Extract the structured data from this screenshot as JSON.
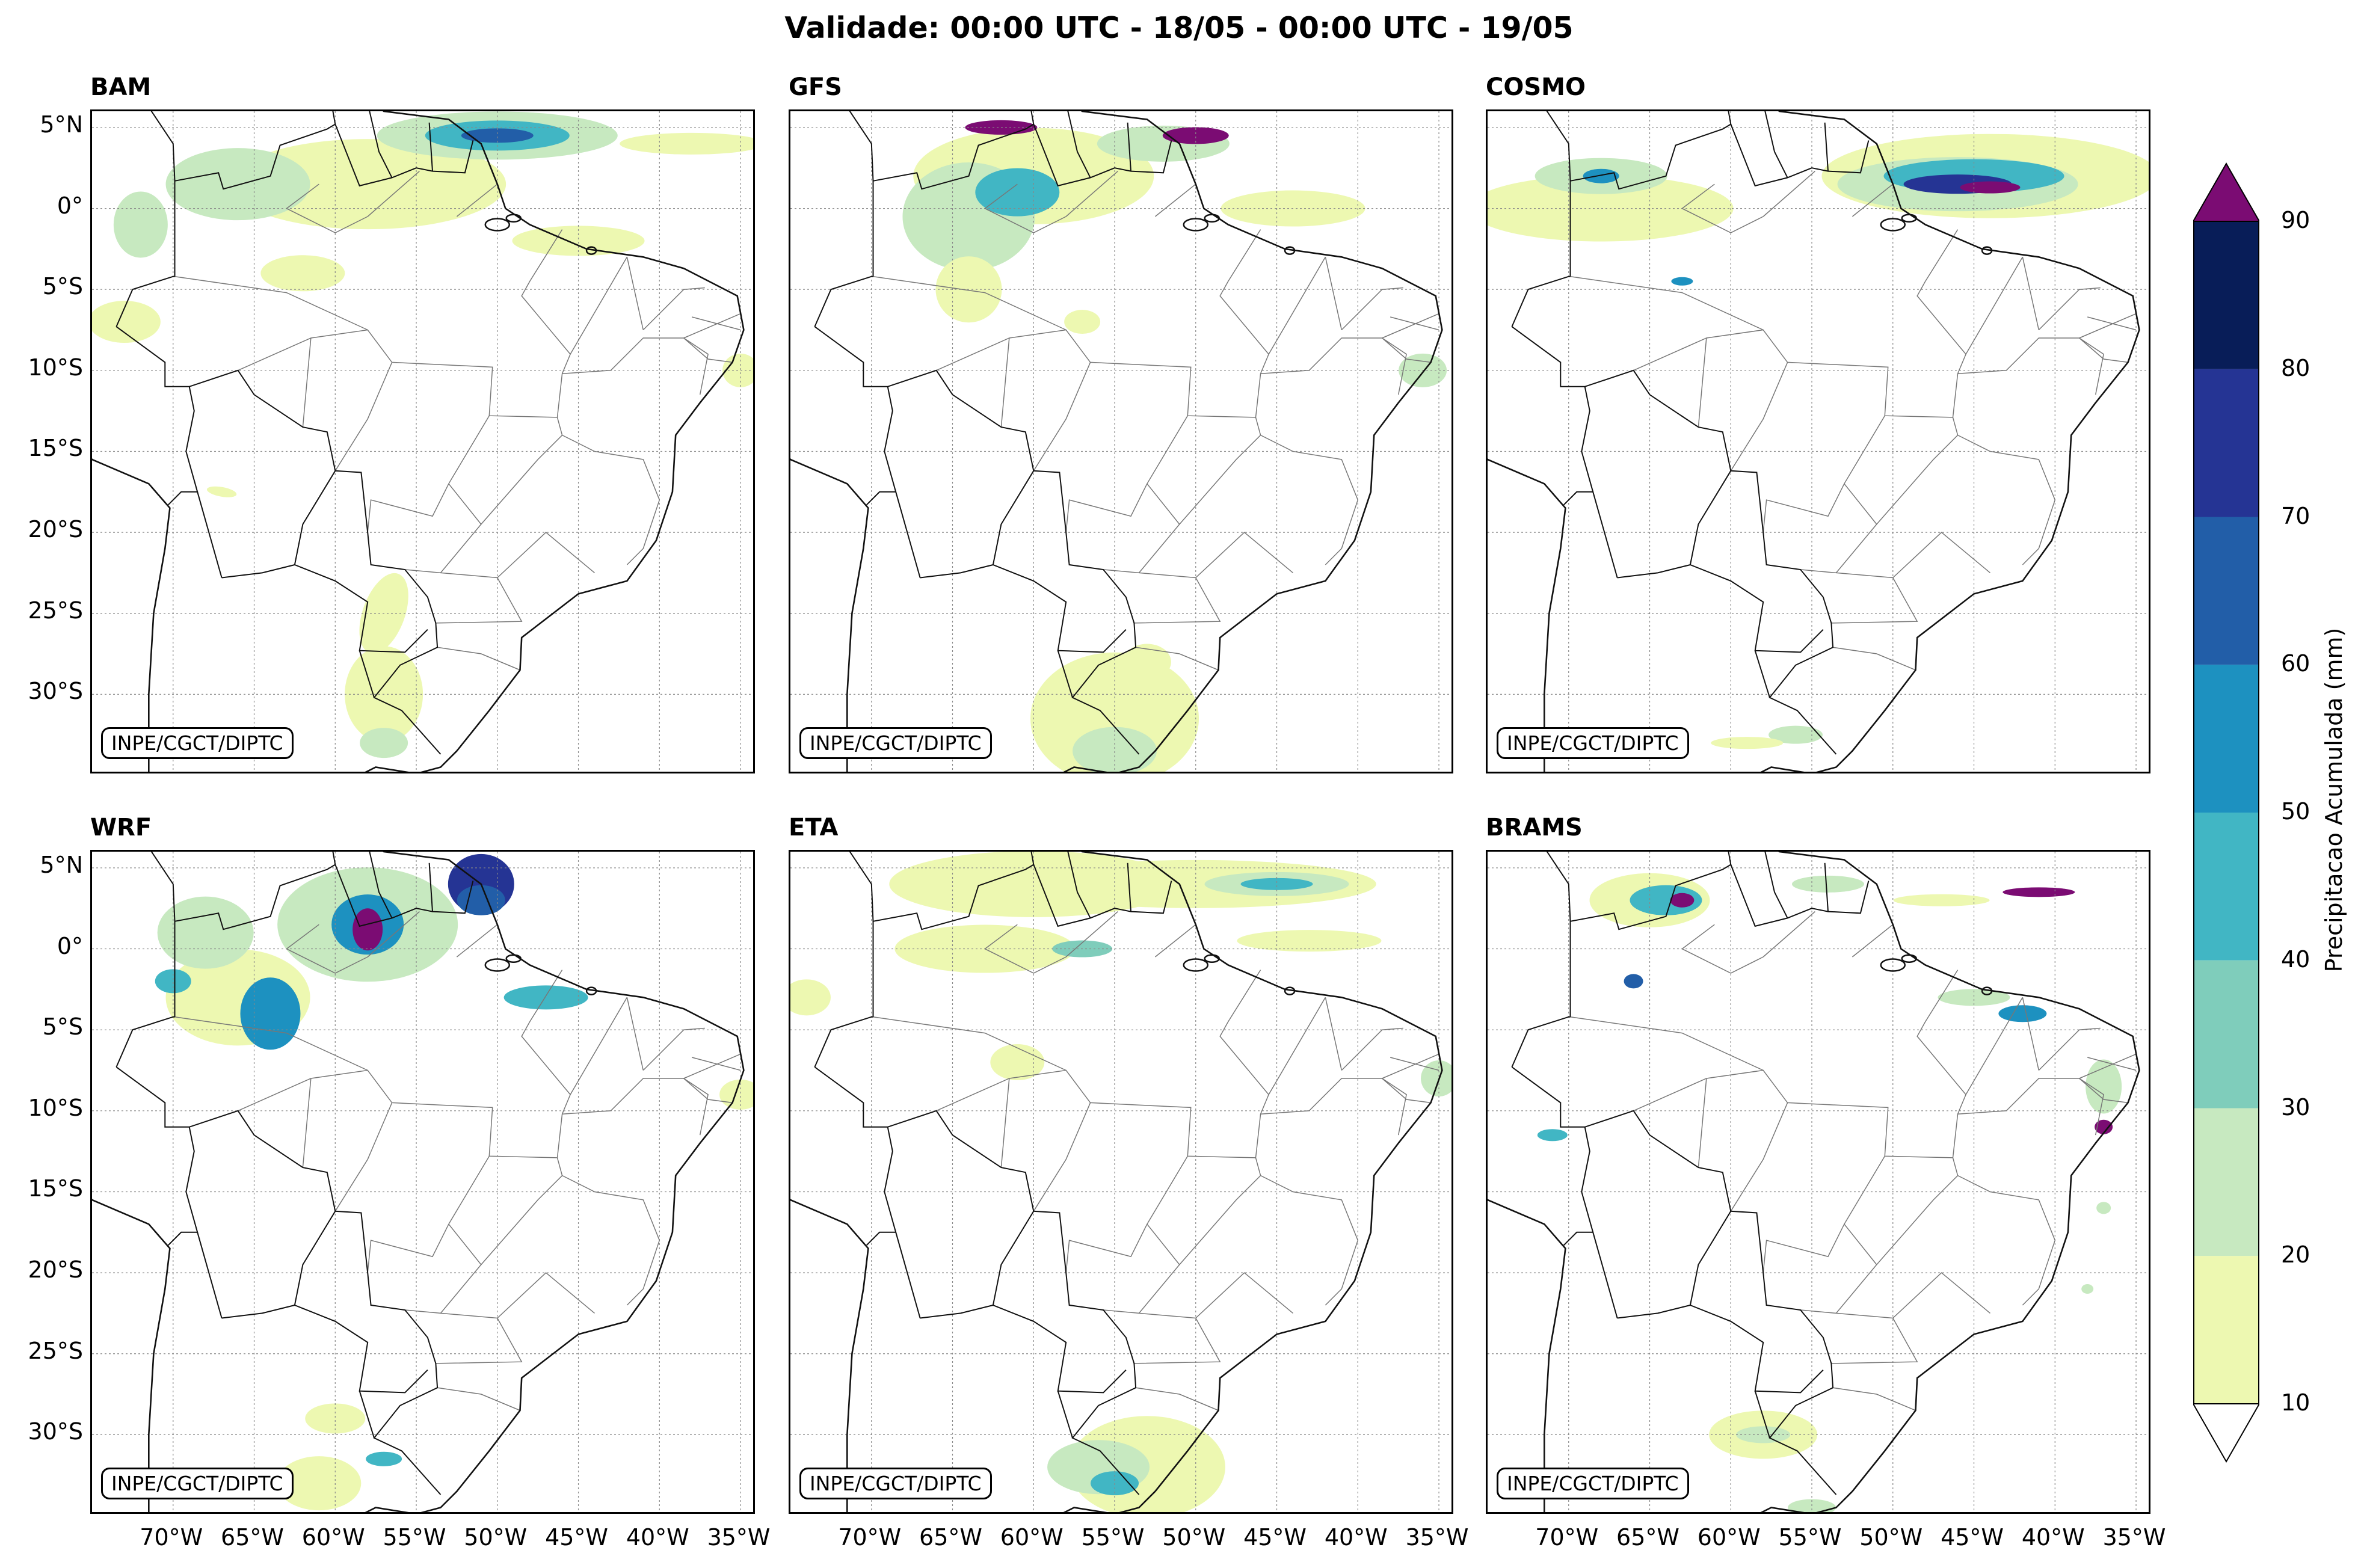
{
  "title": "Validade: 00:00 UTC - 18/05 - 00:00 UTC - 19/05",
  "credit": "INPE/CGCT/DIPTC",
  "panels": [
    {
      "name": "BAM"
    },
    {
      "name": "GFS"
    },
    {
      "name": "COSMO"
    },
    {
      "name": "WRF"
    },
    {
      "name": "ETA"
    },
    {
      "name": "BRAMS"
    }
  ],
  "lat_ticks": [
    "5°N",
    "0°",
    "5°S",
    "10°S",
    "15°S",
    "20°S",
    "25°S",
    "30°S"
  ],
  "lon_ticks": [
    "70°W",
    "65°W",
    "60°W",
    "55°W",
    "50°W",
    "45°W",
    "40°W",
    "35°W"
  ],
  "colorbar": {
    "label": "Precipitacao Acumulada (mm)",
    "ticks": [
      "10",
      "20",
      "30",
      "40",
      "50",
      "60",
      "70",
      "80",
      "90"
    ],
    "colors": [
      "#edf8b1",
      "#c7e9c0",
      "#7fcdbb",
      "#41b6c4",
      "#1d91c0",
      "#225ea8",
      "#253494",
      "#081d58"
    ],
    "over_color": "#7b0c73",
    "under_color": "#ffffff"
  }
}
